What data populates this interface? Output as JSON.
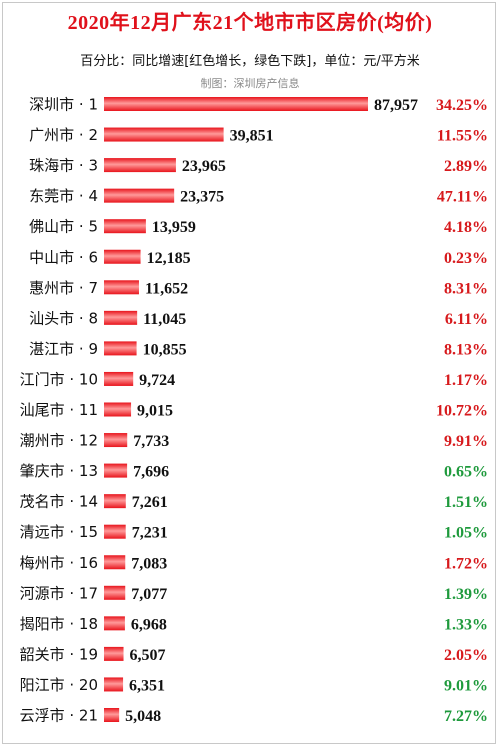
{
  "header": {
    "title": "2020年12月广东21个地市市区房价(均价)",
    "subtitle": "百分比：同比增速[红色增长，绿色下跌]，单位：元/平方米",
    "source": "制图：深圳房产信息"
  },
  "colors": {
    "bar": "#e8141c",
    "bar_highlight": "#ff9a9a",
    "increase": "#d7191c",
    "decrease": "#1e9a3c"
  },
  "chart_data": {
    "type": "bar",
    "orientation": "horizontal",
    "categories": [
      "深圳市 · 1",
      "广州市 · 2",
      "珠海市 · 3",
      "东莞市 · 4",
      "佛山市 · 5",
      "中山市 · 6",
      "惠州市 · 7",
      "汕头市 · 8",
      "湛江市 · 9",
      "江门市 · 10",
      "汕尾市 · 11",
      "潮州市 · 12",
      "肇庆市 · 13",
      "茂名市 · 14",
      "清远市 · 15",
      "梅州市 · 16",
      "河源市 · 17",
      "揭阳市 · 18",
      "韶关市 · 19",
      "阳江市 · 20",
      "云浮市 · 21"
    ],
    "values": [
      87957,
      39851,
      23965,
      23375,
      13959,
      12185,
      11652,
      11045,
      10855,
      9724,
      9015,
      7733,
      7696,
      7261,
      7231,
      7083,
      7077,
      6968,
      6507,
      6351,
      5048
    ],
    "value_labels": [
      "87,957",
      "39,851",
      "23,965",
      "23,375",
      "13,959",
      "12,185",
      "11,652",
      "11,045",
      "10,855",
      "9,724",
      "9,015",
      "7,733",
      "7,696",
      "7,261",
      "7,231",
      "7,083",
      "7,077",
      "6,968",
      "6,507",
      "6,351",
      "5,048"
    ],
    "yoy_labels": [
      "34.25%",
      "11.55%",
      "2.89%",
      "47.11%",
      "4.18%",
      "0.23%",
      "8.31%",
      "6.11%",
      "8.13%",
      "1.17%",
      "10.72%",
      "9.91%",
      "0.65%",
      "1.51%",
      "1.05%",
      "1.72%",
      "1.39%",
      "1.33%",
      "2.05%",
      "9.01%",
      "7.27%"
    ],
    "yoy_direction": [
      "increase",
      "increase",
      "increase",
      "increase",
      "increase",
      "increase",
      "increase",
      "increase",
      "increase",
      "increase",
      "increase",
      "increase",
      "decrease",
      "decrease",
      "decrease",
      "increase",
      "decrease",
      "decrease",
      "increase",
      "decrease",
      "decrease"
    ],
    "grid": false,
    "legend": "none"
  }
}
